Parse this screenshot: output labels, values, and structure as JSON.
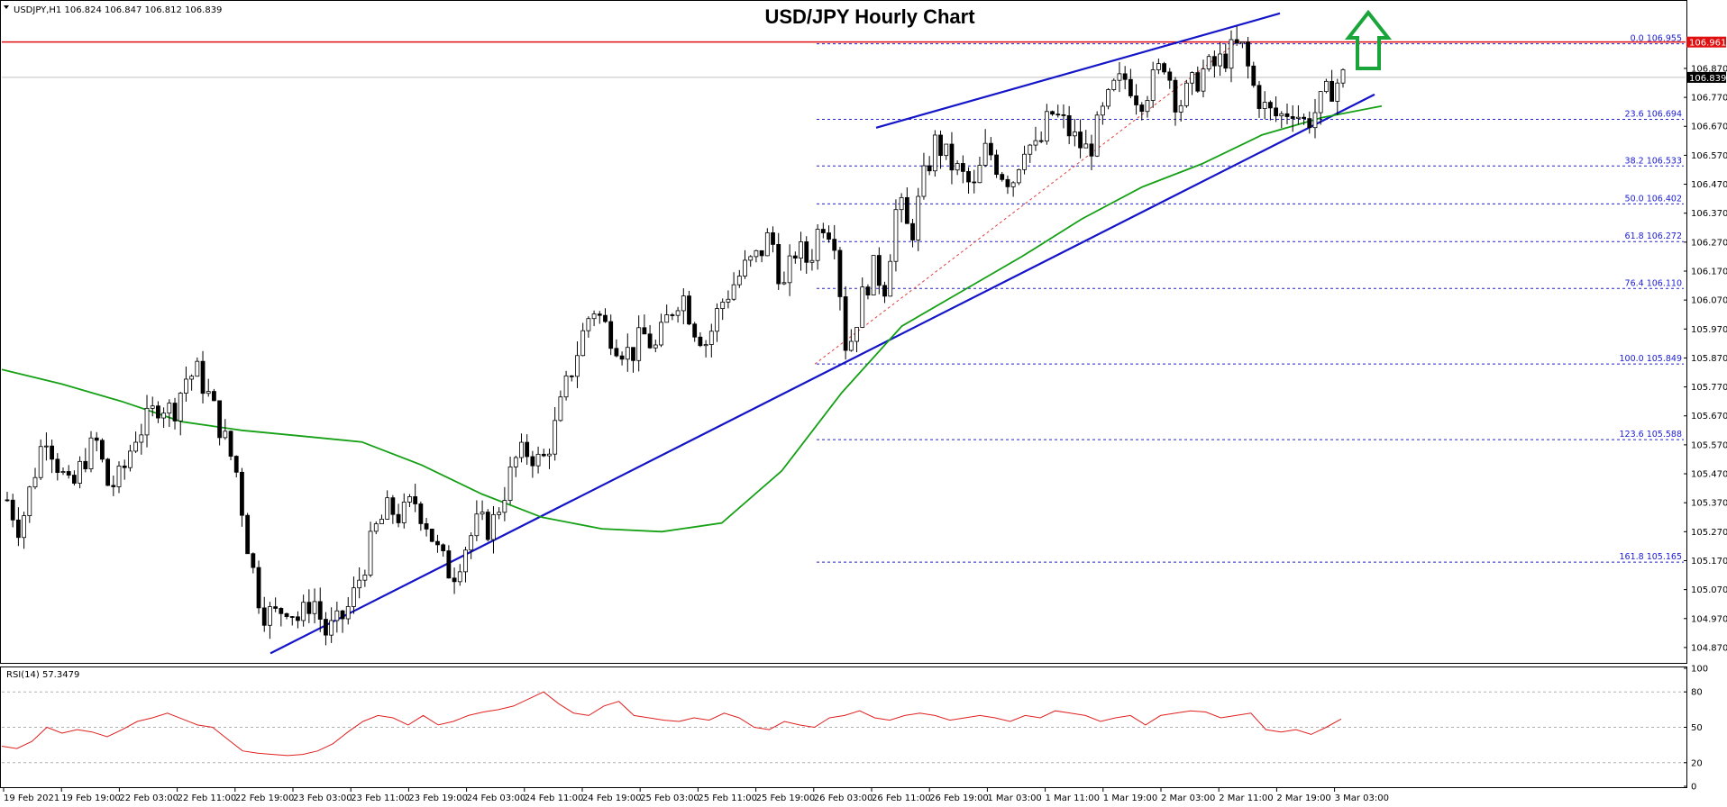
{
  "header": {
    "symbol_info": "USDJPY,H1  106.824 106.847 106.812 106.839"
  },
  "chart_data": {
    "type": "candlestick",
    "title": "USD/JPY Hourly Chart",
    "ylim": [
      104.82,
      107.1
    ],
    "y_ticks": [
      "106.870",
      "106.770",
      "106.670",
      "106.570",
      "106.470",
      "106.370",
      "106.270",
      "106.170",
      "106.070",
      "105.970",
      "105.870",
      "105.770",
      "105.670",
      "105.570",
      "105.470",
      "105.370",
      "105.270",
      "105.170",
      "105.070",
      "104.970",
      "104.870"
    ],
    "x_ticks": [
      "19 Feb 2021",
      "19 Feb 19:00",
      "22 Feb 03:00",
      "22 Feb 11:00",
      "22 Feb 19:00",
      "23 Feb 03:00",
      "23 Feb 11:00",
      "23 Feb 19:00",
      "24 Feb 03:00",
      "24 Feb 11:00",
      "24 Feb 19:00",
      "25 Feb 03:00",
      "25 Feb 11:00",
      "25 Feb 19:00",
      "26 Feb 03:00",
      "26 Feb 11:00",
      "26 Feb 19:00",
      "1 Mar 03:00",
      "1 Mar 11:00",
      "1 Mar 19:00",
      "2 Mar 03:00",
      "2 Mar 11:00",
      "2 Mar 19:00",
      "3 Mar 03:00"
    ],
    "price_path": [
      105.38,
      105.28,
      105.45,
      105.62,
      105.5,
      105.4,
      105.52,
      105.58,
      105.42,
      105.46,
      105.6,
      105.65,
      105.72,
      105.68,
      105.8,
      105.82,
      105.72,
      105.6,
      105.48,
      105.2,
      105.0,
      104.98,
      105.02,
      104.96,
      105.05,
      104.92,
      104.95,
      105.02,
      105.15,
      105.28,
      105.35,
      105.32,
      105.38,
      105.3,
      105.18,
      105.12,
      105.22,
      105.3,
      105.28,
      105.4,
      105.52,
      105.55,
      105.5,
      105.62,
      105.78,
      105.92,
      106.05,
      105.98,
      105.92,
      105.88,
      105.95,
      105.9,
      106.02,
      106.1,
      105.98,
      105.92,
      106.05,
      106.12,
      106.18,
      106.22,
      106.3,
      106.1,
      106.25,
      106.2,
      106.35,
      106.3,
      105.88,
      106.05,
      106.18,
      106.12,
      106.42,
      106.28,
      106.48,
      106.62,
      106.55,
      106.5,
      106.45,
      106.6,
      106.52,
      106.48,
      106.62,
      106.58,
      106.72,
      106.68,
      106.62,
      106.58,
      106.7,
      106.8,
      106.84,
      106.76,
      106.82,
      106.9,
      106.74,
      106.8,
      106.86,
      106.88,
      106.92,
      106.95,
      106.8,
      106.72,
      106.7,
      106.74,
      106.68,
      106.73,
      106.8,
      106.84
    ],
    "current_price": "106.839",
    "resistance_label": "106.961",
    "resistance_price": 106.961,
    "fibonacci": [
      {
        "label": "0.0 106.955",
        "price": 106.955
      },
      {
        "label": "23.6 106.694",
        "price": 106.694
      },
      {
        "label": "38.2 106.533",
        "price": 106.533
      },
      {
        "label": "50.0 106.402",
        "price": 106.402
      },
      {
        "label": "61.8 106.272",
        "price": 106.272
      },
      {
        "label": "76.4 106.110",
        "price": 106.11
      },
      {
        "label": "100.0 105.849",
        "price": 105.849
      },
      {
        "label": "123.6 105.588",
        "price": 105.588
      },
      {
        "label": "161.8 105.165",
        "price": 105.165
      }
    ],
    "moving_average": [
      105.83,
      105.78,
      105.72,
      105.65,
      105.62,
      105.6,
      105.58,
      105.5,
      105.4,
      105.32,
      105.28,
      105.27,
      105.3,
      105.48,
      105.75,
      105.98,
      106.1,
      106.22,
      106.35,
      106.46,
      106.54,
      106.64,
      106.7,
      106.74
    ],
    "colors": {
      "bull": "#ffffff",
      "bear": "#000000",
      "wick": "#000000",
      "ma": "#15a015",
      "trend": "#1414c8",
      "resistance": "#e01010",
      "fib": "#2222cc",
      "rsi": "#e02020",
      "arrow": "#1aa53a"
    },
    "rsi": {
      "label": "RSI(14) 57.3479",
      "ylim": [
        0,
        100
      ],
      "levels": [
        20,
        50,
        80
      ],
      "tick_labels": [
        "100",
        "80",
        "50",
        "20",
        "0"
      ],
      "values": [
        34,
        32,
        38,
        50,
        45,
        48,
        46,
        42,
        48,
        55,
        58,
        62,
        57,
        52,
        50,
        40,
        30,
        28,
        27,
        26,
        27,
        30,
        36,
        46,
        55,
        60,
        58,
        52,
        60,
        52,
        55,
        60,
        63,
        65,
        68,
        74,
        80,
        70,
        62,
        60,
        68,
        72,
        60,
        58,
        56,
        55,
        58,
        56,
        62,
        58,
        50,
        48,
        55,
        52,
        50,
        58,
        60,
        64,
        58,
        56,
        60,
        62,
        60,
        56,
        58,
        60,
        58,
        55,
        60,
        58,
        64,
        62,
        60,
        55,
        58,
        60,
        52,
        60,
        62,
        64,
        63,
        58,
        60,
        62,
        48,
        46,
        48,
        44,
        50,
        57
      ]
    }
  }
}
